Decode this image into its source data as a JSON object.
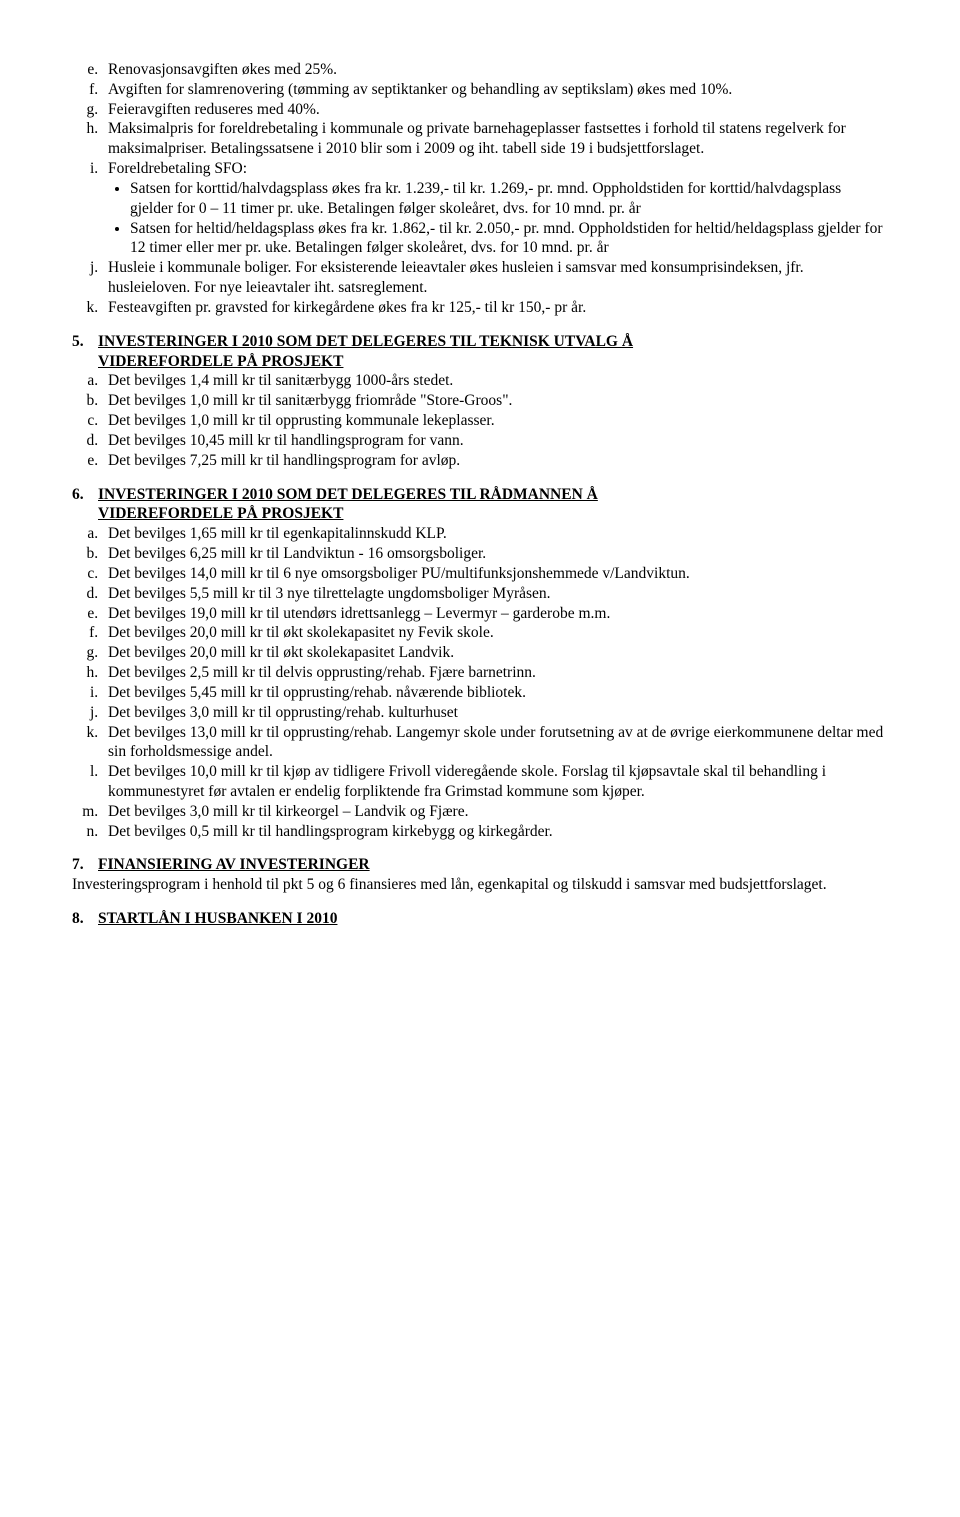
{
  "topList": {
    "e": "Renovasjonsavgiften økes med 25%.",
    "f": "Avgiften for slamrenovering (tømming av septiktanker og behandling av septikslam) økes med 10%.",
    "g": "Feieravgiften reduseres med 40%.",
    "h": "Maksimalpris for foreldrebetaling i kommunale og private barnehageplasser fastsettes i forhold til statens regelverk for maksimalpriser. Betalingssatsene i 2010 blir som i 2009 og iht. tabell side 19 i budsjettforslaget.",
    "i_intro": "Foreldrebetaling SFO:",
    "i_bullet1": "Satsen for korttid/halvdagsplass økes fra kr. 1.239,- til kr. 1.269,- pr. mnd. Oppholdstiden for korttid/halvdagsplass gjelder for 0 – 11 timer pr. uke. Betalingen følger skoleåret, dvs. for 10 mnd. pr. år",
    "i_bullet2": "Satsen for heltid/heldagsplass økes fra kr. 1.862,- til kr. 2.050,- pr. mnd. Oppholdstiden for heltid/heldagsplass gjelder for 12 timer eller mer pr. uke. Betalingen følger skoleåret, dvs. for 10 mnd. pr. år",
    "j": "Husleie i kommunale boliger. For eksisterende leieavtaler økes husleien i samsvar med konsumprisindeksen, jfr. husleieloven. For nye leieavtaler iht. satsreglement.",
    "k": "Festeavgiften pr. gravsted for kirkegårdene økes fra kr 125,- til kr 150,- pr år."
  },
  "section5": {
    "num": "5.",
    "title_line1": "INVESTERINGER I 2010 SOM DET DELEGERES TIL TEKNISK UTVALG Å",
    "title_line2": "VIDEREFORDELE PÅ PROSJEKT",
    "a": "Det bevilges 1,4 mill kr til sanitærbygg 1000-års stedet.",
    "b": "Det bevilges 1,0 mill kr til sanitærbygg friområde \"Store-Groos\".",
    "c": "Det bevilges 1,0 mill kr til opprusting kommunale lekeplasser.",
    "d": "Det bevilges 10,45 mill kr til handlingsprogram for vann.",
    "e": "Det bevilges 7,25 mill kr til handlingsprogram for avløp."
  },
  "section6": {
    "num": "6.",
    "title_line1": "INVESTERINGER I 2010 SOM DET DELEGERES TIL RÅDMANNEN Å",
    "title_line2": "VIDEREFORDELE PÅ PROSJEKT",
    "a": "Det bevilges 1,65 mill kr til egenkapitalinnskudd KLP.",
    "b": "Det bevilges 6,25 mill kr til Landviktun - 16 omsorgsboliger.",
    "c": "Det bevilges 14,0 mill kr til 6 nye omsorgsboliger PU/multifunksjonshemmede v/Landviktun.",
    "d": "Det bevilges 5,5 mill kr til 3 nye tilrettelagte ungdomsboliger Myråsen.",
    "e": "Det bevilges 19,0 mill kr til utendørs idrettsanlegg – Levermyr – garderobe m.m.",
    "f": "Det bevilges 20,0 mill kr til økt skolekapasitet ny Fevik skole.",
    "g": "Det bevilges 20,0 mill kr til økt skolekapasitet Landvik.",
    "h": "Det bevilges 2,5 mill kr til delvis opprusting/rehab. Fjære barnetrinn.",
    "i": "Det bevilges 5,45 mill kr til opprusting/rehab. nåværende bibliotek.",
    "j": "Det bevilges 3,0 mill kr til opprusting/rehab. kulturhuset",
    "k": "Det bevilges 13,0 mill kr til opprusting/rehab. Langemyr skole under forutsetning av at de øvrige eierkommunene deltar med sin forholdsmessige andel.",
    "l": "Det bevilges 10,0 mill kr til kjøp av tidligere Frivoll videregående skole. Forslag til kjøpsavtale skal til behandling i kommunestyret før avtalen er endelig forpliktende fra Grimstad kommune som kjøper.",
    "m": "Det bevilges 3,0 mill kr til kirkeorgel – Landvik og Fjære.",
    "n": "Det bevilges 0,5 mill kr til handlingsprogram kirkebygg og kirkegårder."
  },
  "section7": {
    "num": "7.",
    "title": "FINANSIERING AV INVESTERINGER",
    "body": "Investeringsprogram i henhold til pkt 5 og 6 finansieres med lån, egenkapital og tilskudd i samsvar med budsjettforslaget."
  },
  "section8": {
    "num": "8.",
    "title": "STARTLÅN I HUSBANKEN I 2010"
  }
}
